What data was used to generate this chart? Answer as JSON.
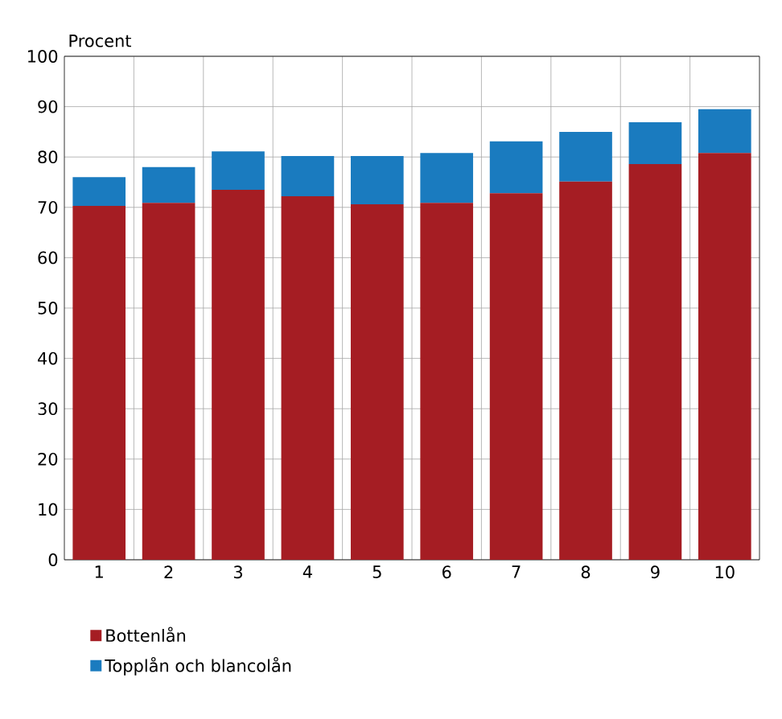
{
  "chart_data": {
    "type": "bar",
    "ylabel": "Procent",
    "stacked": true,
    "categories": [
      "1",
      "2",
      "3",
      "4",
      "5",
      "6",
      "7",
      "8",
      "9",
      "10"
    ],
    "series": [
      {
        "name": "Bottenlån",
        "color": "#a51d23",
        "values": [
          70.3,
          70.9,
          73.5,
          72.2,
          70.6,
          70.9,
          72.8,
          75.1,
          78.6,
          80.8
        ]
      },
      {
        "name": "Topplån och blancolån",
        "color": "#1a7bbf",
        "values": [
          5.7,
          7.1,
          7.6,
          8.0,
          9.6,
          9.9,
          10.3,
          9.9,
          8.3,
          8.7
        ]
      }
    ],
    "ylim": [
      0,
      100
    ],
    "yticks": [
      0,
      10,
      20,
      30,
      40,
      50,
      60,
      70,
      80,
      90,
      100
    ],
    "grid": true,
    "legend": "bottom"
  }
}
